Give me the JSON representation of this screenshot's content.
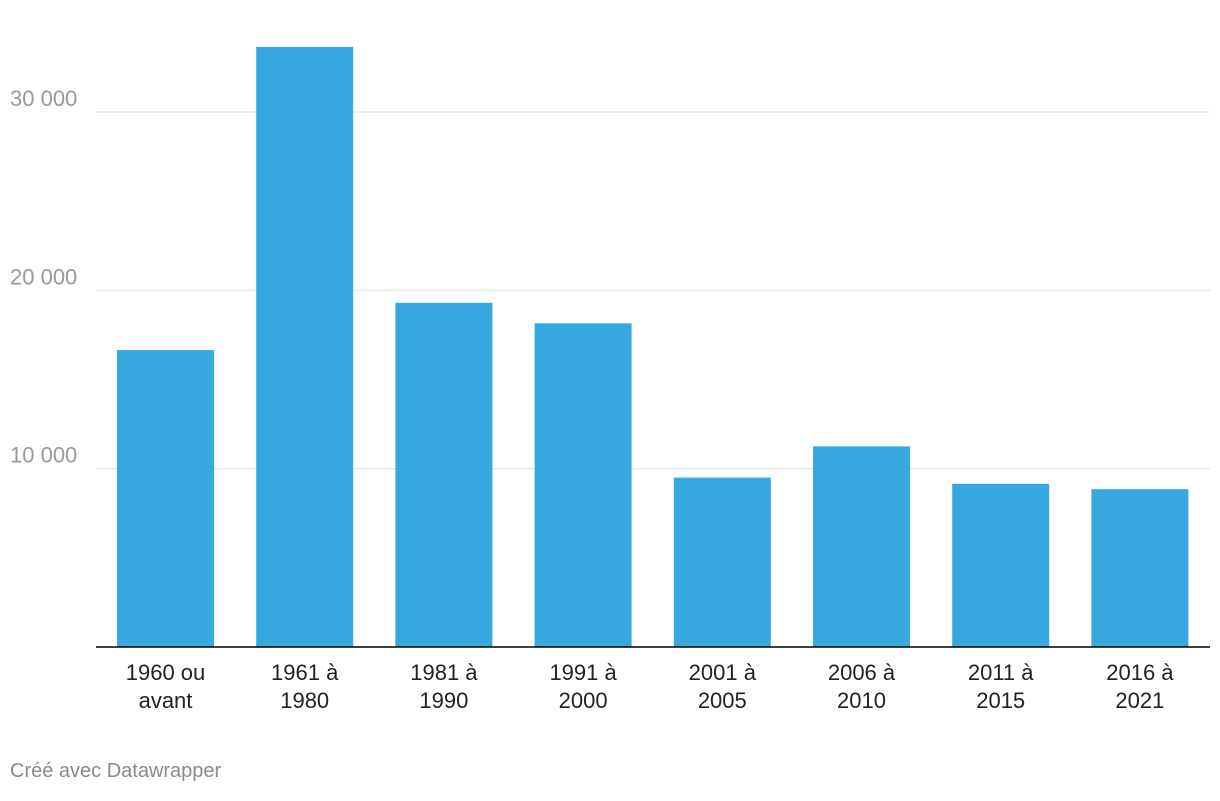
{
  "chart_data": {
    "type": "bar",
    "categories": [
      [
        "1960 ou",
        "avant"
      ],
      [
        "1961 à",
        "1980"
      ],
      [
        "1981 à",
        "1990"
      ],
      [
        "1991 à",
        "2000"
      ],
      [
        "2001 à",
        "2005"
      ],
      [
        "2006 à",
        "2010"
      ],
      [
        "2011 à",
        "2015"
      ],
      [
        "2016 à",
        "2021"
      ]
    ],
    "values": [
      16650,
      33650,
      19300,
      18150,
      9500,
      11250,
      9150,
      8850
    ],
    "ylim": [
      0,
      35000
    ],
    "yticks": [
      10000,
      20000,
      30000
    ],
    "ytick_labels": [
      "10 000",
      "20 000",
      "30 000"
    ],
    "bar_color": "#38a9e0",
    "grid": true,
    "grid_color": "#e2e2e2",
    "axis_color": "#000000",
    "tick_label_color": "#999999",
    "legend": "none"
  },
  "footer": {
    "credit": "Créé avec Datawrapper"
  }
}
